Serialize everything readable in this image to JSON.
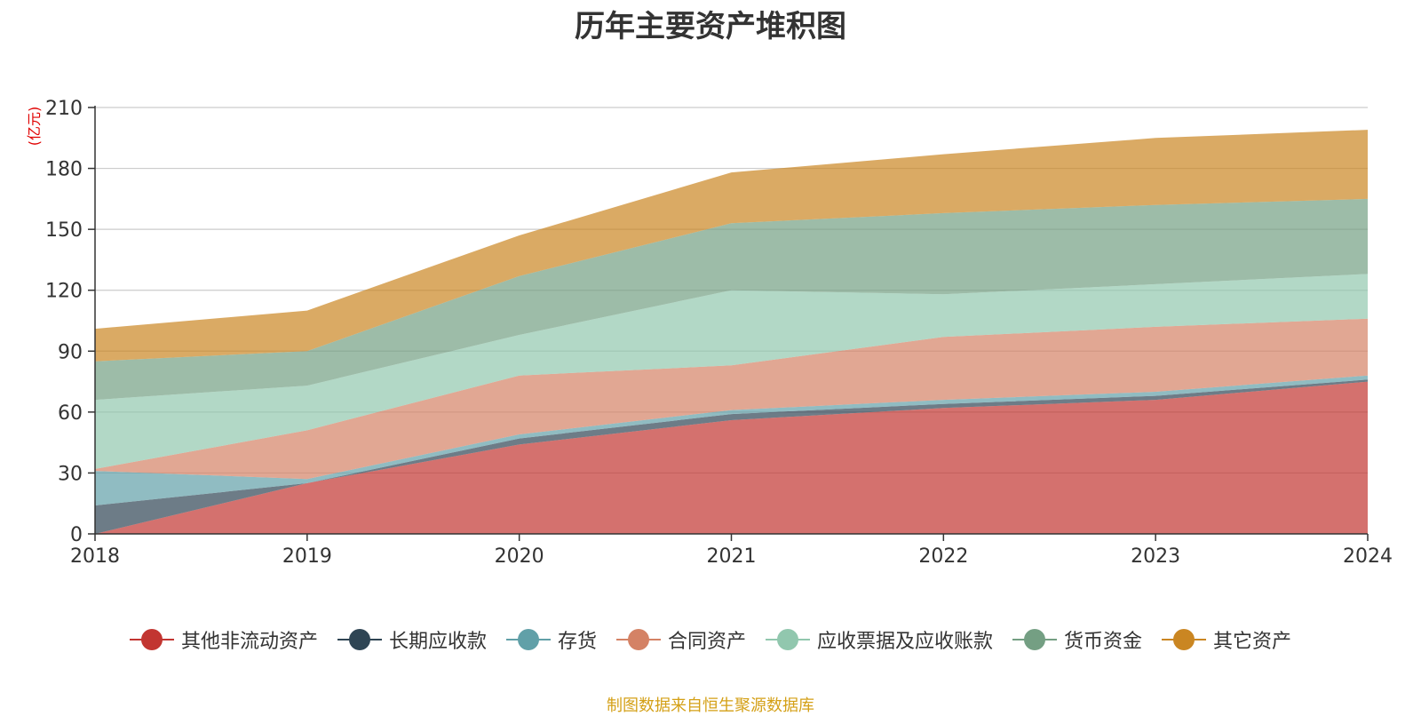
{
  "chart_data": {
    "type": "area",
    "stacked": true,
    "title": "历年主要资产堆积图",
    "ylabel": "(亿元)",
    "xlabel": "",
    "x": [
      "2018",
      "2019",
      "2020",
      "2021",
      "2022",
      "2023",
      "2024"
    ],
    "ylim": [
      0,
      210
    ],
    "yticks": [
      0,
      30,
      60,
      90,
      120,
      150,
      180,
      210
    ],
    "grid": true,
    "legend_position": "bottom",
    "series": [
      {
        "name": "其他非流动资产",
        "color": "#c23531",
        "values": [
          0,
          25,
          44,
          56,
          62,
          66,
          75
        ]
      },
      {
        "name": "长期应收款",
        "color": "#2f4554",
        "values": [
          14,
          0,
          3,
          3,
          2,
          2,
          1
        ]
      },
      {
        "name": "存货",
        "color": "#61a0a8",
        "values": [
          17,
          2,
          2,
          2,
          2,
          2,
          2
        ]
      },
      {
        "name": "合同资产",
        "color": "#d48265",
        "values": [
          1,
          24,
          29,
          22,
          31,
          32,
          28
        ]
      },
      {
        "name": "应收票据及应收账款",
        "color": "#91c7ae",
        "values": [
          34,
          22,
          20,
          37,
          21,
          21,
          22
        ]
      },
      {
        "name": "货币资金",
        "color": "#749f83",
        "values": [
          19,
          17,
          29,
          33,
          40,
          39,
          37
        ]
      },
      {
        "name": "其它资产",
        "color": "#ca8622",
        "values": [
          16,
          20,
          20,
          25,
          29,
          33,
          34
        ]
      }
    ],
    "source_note": "制图数据来自恒生聚源数据库"
  }
}
